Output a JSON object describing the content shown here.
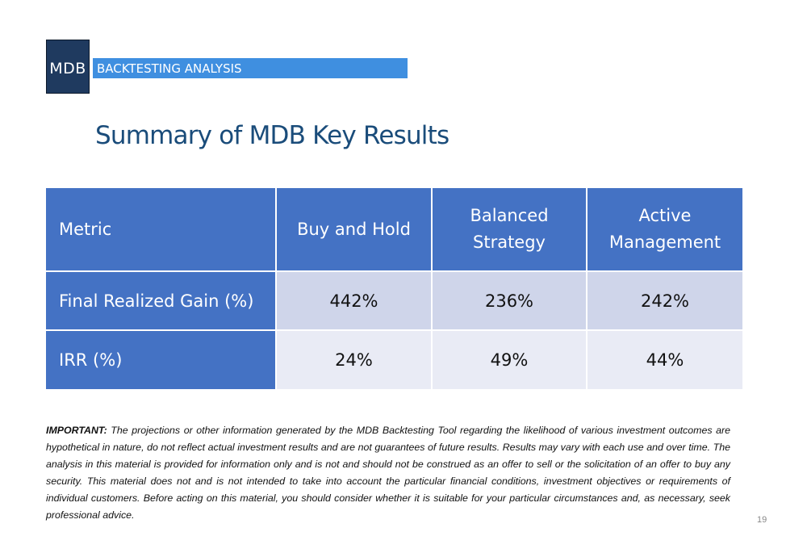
{
  "header": {
    "logo_text": "MDB",
    "banner_text": "BACKTESTING ANALYSIS"
  },
  "title": "Summary of MDB Key Results",
  "table": {
    "columns": [
      "Metric",
      "Buy and Hold",
      "Balanced Strategy",
      "Active Management"
    ],
    "column_lines": [
      [
        "Metric"
      ],
      [
        "Buy and Hold"
      ],
      [
        "Balanced",
        "Strategy"
      ],
      [
        "Active",
        "Management"
      ]
    ],
    "rows": [
      {
        "metric": "Final Realized Gain (%)",
        "values": [
          "442%",
          "236%",
          "242%"
        ]
      },
      {
        "metric": "IRR (%)",
        "values": [
          "24%",
          "49%",
          "44%"
        ]
      }
    ]
  },
  "disclaimer": {
    "label": "IMPORTANT:",
    "text": "The projections or other information generated by the MDB Backtesting Tool regarding the likelihood of various investment outcomes are hypothetical in nature, do not reflect actual investment results and are not guarantees of future results. Results may vary with each use and over time. The analysis in this material is provided for information only and is not and should not be construed as an offer to sell or the solicitation of an offer to buy any security. This material does not and is not intended to take into account the particular financial conditions, investment objectives or requirements of individual customers. Before acting on this material, you should consider whether it is suitable for your particular circumstances and, as necessary, seek professional advice."
  },
  "page_number": "19",
  "colors": {
    "logo_bg": "#1f3a5f",
    "banner_bg": "#3f8fe0",
    "title": "#1a4c7a",
    "header_bg": "#4472c4",
    "row1_bg": "#cfd5ea",
    "row2_bg": "#e9ebf5"
  }
}
